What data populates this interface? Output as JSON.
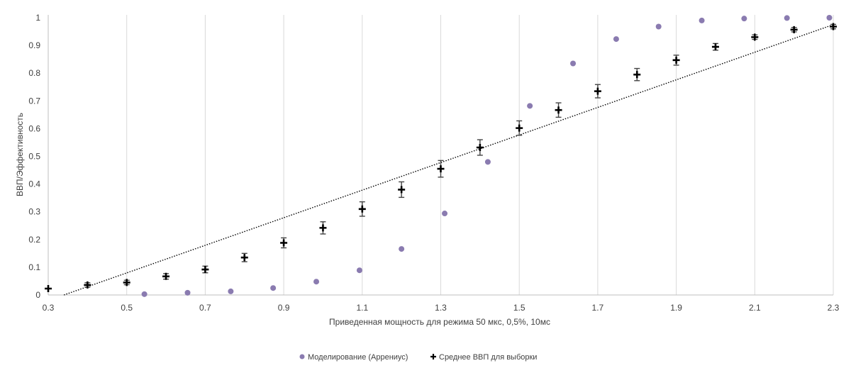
{
  "chart_data": {
    "type": "scatter",
    "title": "",
    "xlabel": "Приведенная мощность для режима  50 мкс,  0,5%, 10мс",
    "ylabel": "ВВП/Эффективность",
    "xlim": [
      0.3,
      2.3
    ],
    "ylim": [
      0,
      1
    ],
    "x_ticks": [
      "0.3",
      "0.5",
      "0.7",
      "0.9",
      "1.1",
      "1.3",
      "1.5",
      "1.7",
      "1.9",
      "2.1",
      "2.3"
    ],
    "y_ticks": [
      "0",
      "0.1",
      "0.2",
      "0.3",
      "0.4",
      "0.5",
      "0.6",
      "0.7",
      "0.8",
      "0.9",
      "1"
    ],
    "grid": "vertical",
    "legend_position": "bottom",
    "series": [
      {
        "name": "Моделирование (Аррениус)",
        "marker": "circle",
        "color": "#8a7bb0",
        "points": [
          {
            "x": 0.545,
            "y": 0.003
          },
          {
            "x": 0.655,
            "y": 0.008
          },
          {
            "x": 0.765,
            "y": 0.013
          },
          {
            "x": 0.873,
            "y": 0.025
          },
          {
            "x": 0.983,
            "y": 0.048
          },
          {
            "x": 1.093,
            "y": 0.089
          },
          {
            "x": 1.2,
            "y": 0.166
          },
          {
            "x": 1.31,
            "y": 0.294
          },
          {
            "x": 1.42,
            "y": 0.48
          },
          {
            "x": 1.527,
            "y": 0.682
          },
          {
            "x": 1.637,
            "y": 0.835
          },
          {
            "x": 1.747,
            "y": 0.923
          },
          {
            "x": 1.855,
            "y": 0.968
          },
          {
            "x": 1.965,
            "y": 0.99
          },
          {
            "x": 2.073,
            "y": 0.997
          },
          {
            "x": 2.182,
            "y": 0.999
          },
          {
            "x": 2.29,
            "y": 1.0
          }
        ]
      },
      {
        "name": "Среднее ВВП для выборки",
        "marker": "plus",
        "color": "#000000",
        "error_bars": true,
        "points": [
          {
            "x": 0.3,
            "y": 0.023,
            "err": 0.0
          },
          {
            "x": 0.4,
            "y": 0.036,
            "err": 0.008
          },
          {
            "x": 0.5,
            "y": 0.045,
            "err": 0.008
          },
          {
            "x": 0.6,
            "y": 0.067,
            "err": 0.01
          },
          {
            "x": 0.7,
            "y": 0.092,
            "err": 0.012
          },
          {
            "x": 0.8,
            "y": 0.135,
            "err": 0.015
          },
          {
            "x": 0.9,
            "y": 0.188,
            "err": 0.018
          },
          {
            "x": 1.0,
            "y": 0.242,
            "err": 0.022
          },
          {
            "x": 1.1,
            "y": 0.31,
            "err": 0.026
          },
          {
            "x": 1.2,
            "y": 0.38,
            "err": 0.028
          },
          {
            "x": 1.3,
            "y": 0.455,
            "err": 0.03
          },
          {
            "x": 1.4,
            "y": 0.532,
            "err": 0.028
          },
          {
            "x": 1.5,
            "y": 0.602,
            "err": 0.026
          },
          {
            "x": 1.6,
            "y": 0.667,
            "err": 0.026
          },
          {
            "x": 1.7,
            "y": 0.735,
            "err": 0.024
          },
          {
            "x": 1.8,
            "y": 0.795,
            "err": 0.022
          },
          {
            "x": 1.9,
            "y": 0.847,
            "err": 0.018
          },
          {
            "x": 2.0,
            "y": 0.895,
            "err": 0.012
          },
          {
            "x": 2.1,
            "y": 0.93,
            "err": 0.008
          },
          {
            "x": 2.2,
            "y": 0.957,
            "err": 0.008
          },
          {
            "x": 2.3,
            "y": 0.968,
            "err": 0.008
          }
        ]
      }
    ],
    "trendline": {
      "style": "dotted",
      "color": "#000000",
      "points": [
        {
          "x": 0.34,
          "y": 0.0
        },
        {
          "x": 2.3,
          "y": 0.975
        }
      ]
    }
  }
}
